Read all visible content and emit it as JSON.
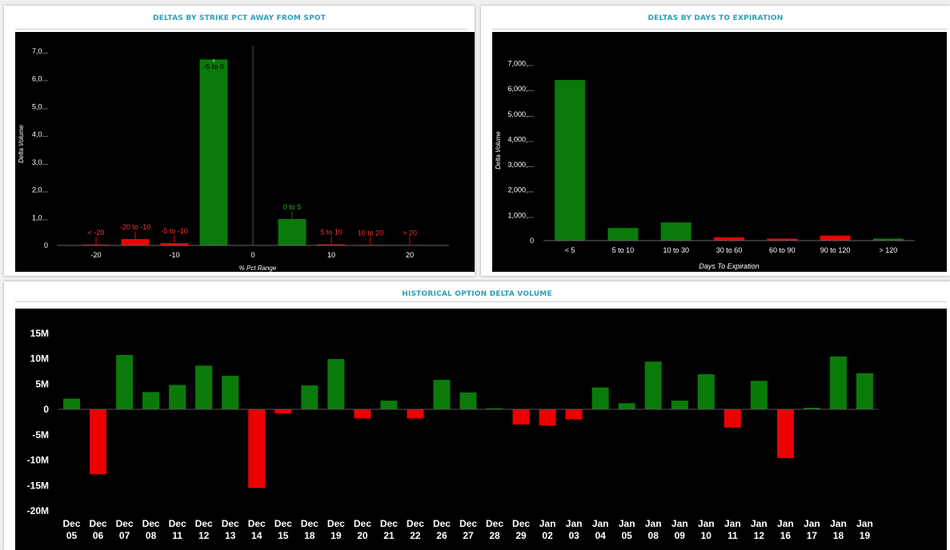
{
  "colors": {
    "positive": "#0a7b0a",
    "negative": "#ee0000",
    "title": "#2aa0b8"
  },
  "panels": {
    "strike": {
      "title": "DELTAS BY STRIKE PCT AWAY FROM SPOT"
    },
    "expiry": {
      "title": "DELTAS BY DAYS TO EXPIRATION"
    },
    "history": {
      "title": "HISTORICAL OPTION DELTA VOLUME"
    }
  },
  "chart_data": [
    {
      "id": "strike",
      "type": "bar",
      "xlabel": "% Pct Range",
      "ylabel": "Delta Volume",
      "xlim": [
        -25,
        25
      ],
      "ylim": [
        0,
        7200
      ],
      "x_ticks": [
        "-20",
        "-10",
        "0",
        "10",
        "20"
      ],
      "x_tick_values": [
        -20,
        -10,
        0,
        10,
        20
      ],
      "y_ticks": [
        "0",
        "1,0...",
        "2,0...",
        "3,0...",
        "4,0...",
        "5,0...",
        "6,0...",
        "7,0..."
      ],
      "y_tick_values": [
        0,
        1000,
        2000,
        3000,
        4000,
        5000,
        6000,
        7000
      ],
      "grid": false,
      "legend": "none",
      "bars": [
        {
          "label": "< -20",
          "x": -20,
          "value": 30,
          "sign": "neg"
        },
        {
          "label": "-20 to -10",
          "x": -15,
          "value": 230,
          "sign": "neg"
        },
        {
          "label": "-5 to -10",
          "x": -10,
          "value": 80,
          "sign": "neg"
        },
        {
          "label": "-5 to 0",
          "x": -5,
          "value": 6700,
          "sign": "pos"
        },
        {
          "label": "0 to 5",
          "x": 5,
          "value": 950,
          "sign": "pos"
        },
        {
          "label": "5 to 10",
          "x": 10,
          "value": 40,
          "sign": "neg"
        },
        {
          "label": "10 to 20",
          "x": 15,
          "value": 20,
          "sign": "neg"
        },
        {
          "label": "> 20",
          "x": 20,
          "value": 15,
          "sign": "neg"
        }
      ]
    },
    {
      "id": "expiry",
      "type": "bar",
      "xlabel": "Days To Expiration",
      "ylabel": "Delta Volume",
      "ylim": [
        0,
        7300
      ],
      "y_ticks": [
        "0",
        "1,000,...",
        "2,000,...",
        "3,000,...",
        "4,000,...",
        "5,000,...",
        "6,000,...",
        "7,000,..."
      ],
      "y_tick_values": [
        0,
        1000,
        2000,
        3000,
        4000,
        5000,
        6000,
        7000
      ],
      "grid": false,
      "legend": "none",
      "categories": [
        "< 5",
        "5 to 10",
        "10 to 30",
        "30 to 60",
        "60 to 90",
        "90 to 120",
        "> 120"
      ],
      "values": [
        6350,
        500,
        720,
        130,
        80,
        200,
        80
      ],
      "signs": [
        "pos",
        "pos",
        "pos",
        "neg",
        "neg",
        "neg",
        "pos"
      ]
    },
    {
      "id": "history",
      "type": "bar",
      "ylim": [
        -20,
        17
      ],
      "y_ticks": [
        "15M",
        "10M",
        "5M",
        "0",
        "-5M",
        "-10M",
        "-15M",
        "-20M"
      ],
      "y_tick_values": [
        15,
        10,
        5,
        0,
        -5,
        -10,
        -15,
        -20
      ],
      "grid": false,
      "legend": "none",
      "categories": [
        [
          "Dec",
          "05"
        ],
        [
          "Dec",
          "06"
        ],
        [
          "Dec",
          "07"
        ],
        [
          "Dec",
          "08"
        ],
        [
          "Dec",
          "11"
        ],
        [
          "Dec",
          "12"
        ],
        [
          "Dec",
          "13"
        ],
        [
          "Dec",
          "14"
        ],
        [
          "Dec",
          "15"
        ],
        [
          "Dec",
          "18"
        ],
        [
          "Dec",
          "19"
        ],
        [
          "Dec",
          "20"
        ],
        [
          "Dec",
          "21"
        ],
        [
          "Dec",
          "22"
        ],
        [
          "Dec",
          "26"
        ],
        [
          "Dec",
          "27"
        ],
        [
          "Dec",
          "28"
        ],
        [
          "Dec",
          "29"
        ],
        [
          "Jan",
          "02"
        ],
        [
          "Jan",
          "03"
        ],
        [
          "Jan",
          "04"
        ],
        [
          "Jan",
          "05"
        ],
        [
          "Jan",
          "08"
        ],
        [
          "Jan",
          "09"
        ],
        [
          "Jan",
          "10"
        ],
        [
          "Jan",
          "11"
        ],
        [
          "Jan",
          "12"
        ],
        [
          "Jan",
          "16"
        ],
        [
          "Jan",
          "17"
        ],
        [
          "Jan",
          "18"
        ],
        [
          "Jan",
          "19"
        ]
      ],
      "values": [
        2.1,
        -12.8,
        10.7,
        3.4,
        4.8,
        8.6,
        6.6,
        -15.5,
        -0.8,
        4.7,
        9.9,
        -1.8,
        1.7,
        -1.8,
        5.8,
        3.3,
        0.2,
        -3.0,
        -3.2,
        -2.0,
        4.3,
        1.2,
        9.4,
        1.7,
        6.9,
        -3.6,
        5.6,
        -9.6,
        0.3,
        10.4,
        7.1
      ]
    }
  ]
}
